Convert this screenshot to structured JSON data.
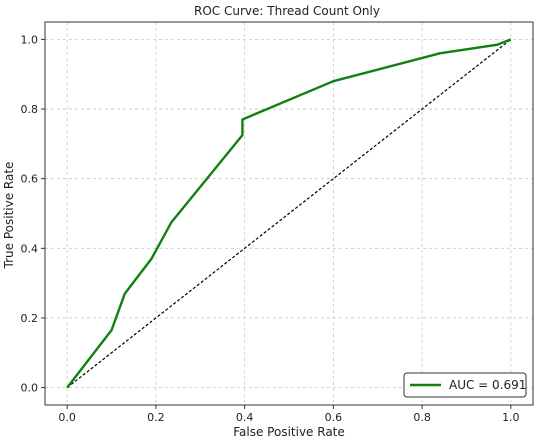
{
  "chart_data": {
    "type": "line",
    "title": "ROC Curve: Thread Count Only",
    "xlabel": "False Positive Rate",
    "ylabel": "True Positive Rate",
    "xlim": [
      -0.05,
      1.05
    ],
    "ylim": [
      -0.05,
      1.05
    ],
    "xticks": [
      "0.0",
      "0.2",
      "0.4",
      "0.6",
      "0.8",
      "1.0"
    ],
    "yticks": [
      "0.0",
      "0.2",
      "0.4",
      "0.6",
      "0.8",
      "1.0"
    ],
    "grid": true,
    "legend_position": "lower-right",
    "series": [
      {
        "name": "AUC = 0.691",
        "color": "#118011",
        "style": "solid",
        "x": [
          0.0,
          0.1,
          0.13,
          0.19,
          0.235,
          0.395,
          0.395,
          0.6,
          0.84,
          0.97,
          1.0
        ],
        "y": [
          0.0,
          0.165,
          0.27,
          0.37,
          0.475,
          0.725,
          0.77,
          0.88,
          0.96,
          0.985,
          1.0
        ]
      },
      {
        "name": "",
        "color": "#000000",
        "style": "dashed",
        "x": [
          0.0,
          1.0
        ],
        "y": [
          0.0,
          1.0
        ]
      }
    ]
  }
}
